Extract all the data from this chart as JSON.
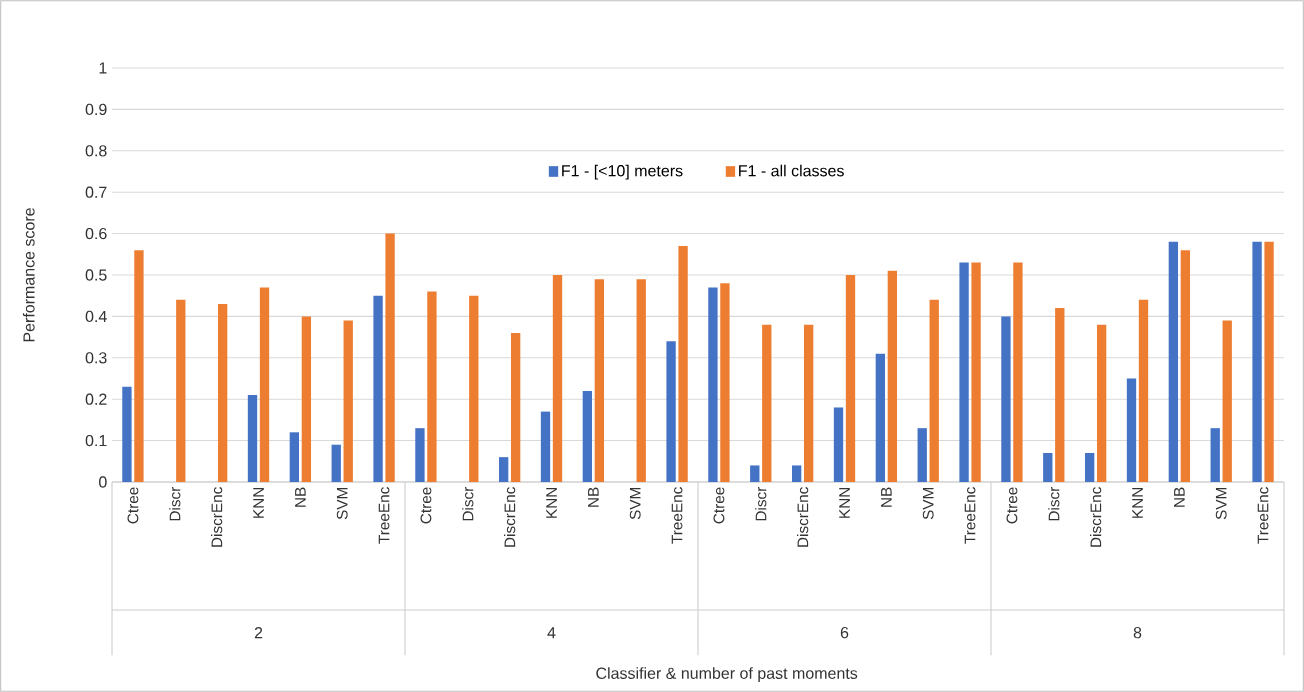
{
  "chart_data": {
    "type": "bar",
    "ylabel": "Performance score",
    "categories": [
      "Ctree",
      "Discr",
      "DiscrEnc",
      "KNN",
      "NB",
      "SVM",
      "TreeEnc",
      "Ctree",
      "Discr",
      "DiscrEnc",
      "KNN",
      "NB",
      "SVM",
      "TreeEnc",
      "Ctree",
      "Discr",
      "DiscrEnc",
      "KNN",
      "NB",
      "SVM",
      "TreeEnc",
      "Ctree",
      "Discr",
      "DiscrEnc",
      "KNN",
      "NB",
      "SVM",
      "TreeEnc"
    ],
    "series": [
      {
        "name": "F1 - [<10] meters",
        "color": "#4472c4",
        "values": [
          0.23,
          0,
          0,
          0.21,
          0.12,
          0.09,
          0.45,
          0.13,
          0,
          0.06,
          0.17,
          0.22,
          0,
          0.34,
          0.47,
          0.04,
          0.04,
          0.18,
          0.31,
          0.13,
          0.53,
          0.4,
          0.07,
          0.07,
          0.25,
          0.58,
          0.13,
          0.58
        ]
      },
      {
        "name": "F1 - all classes",
        "color": "#ed7d31",
        "values": [
          0.56,
          0.44,
          0.43,
          0.47,
          0.4,
          0.39,
          0.6,
          0.46,
          0.45,
          0.36,
          0.5,
          0.49,
          0.49,
          0.57,
          0.48,
          0.38,
          0.38,
          0.5,
          0.51,
          0.44,
          0.53,
          0.53,
          0.42,
          0.38,
          0.44,
          0.56,
          0.39,
          0.58
        ]
      }
    ],
    "annotations": [
      "Classifier & number of past moments",
      "2",
      "4",
      "6",
      "8"
    ],
    "ylim": [
      0,
      1
    ],
    "yticks": [
      0,
      0.1,
      0.2,
      0.3,
      0.4,
      0.5,
      0.6,
      0.7,
      0.8,
      0.9,
      1
    ],
    "grid": "y",
    "legend": "top"
  }
}
